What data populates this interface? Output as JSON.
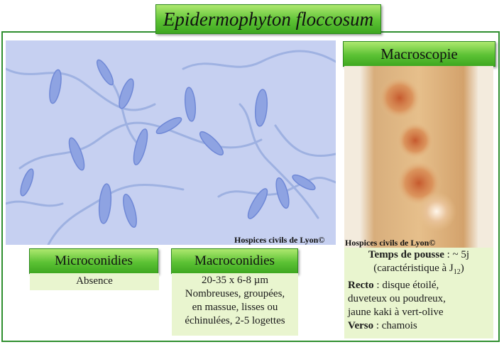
{
  "title": "Epidermophyton floccosum",
  "micro_image": {
    "credit": "Hospices civils de Lyon©"
  },
  "macro": {
    "label": "Macroscopie",
    "credit": "Hospices civils de Lyon©",
    "growth_label": "Temps de pousse",
    "growth_value": " : ~ 5j",
    "growth_note": "(caractéristique à J",
    "growth_note_sub": "12",
    "growth_note_end": ")",
    "recto_label": "Recto",
    "recto_text": " : disque étoilé,",
    "recto_line2": "duveteux ou poudreux,",
    "recto_line3": "jaune kaki à vert-olive",
    "verso_label": "Verso",
    "verso_text": " : chamois"
  },
  "microconidies": {
    "label": "Microconidies",
    "text": "Absence"
  },
  "macroconidies": {
    "label": "Macroconidies",
    "lines": [
      "20-35 x 6-8 µm",
      "Nombreuses, groupées,",
      "en massue, lisses ou",
      "échinulées, 2-5 logettes"
    ]
  },
  "colors": {
    "frame": "#2f8f2f",
    "label_green": "#5cc234",
    "box_bg": "#e9f5cf",
    "micro_bg": "#c4cef0"
  }
}
